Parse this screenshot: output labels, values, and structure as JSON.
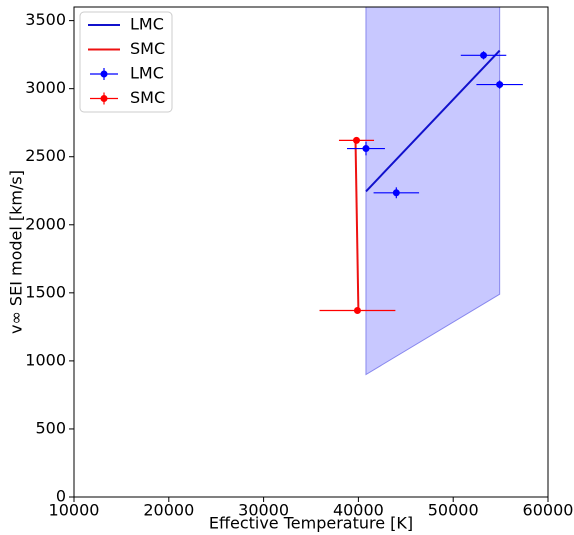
{
  "chart_data": {
    "type": "line",
    "xlabel": "Effective Temperature [K]",
    "ylabel": "v∞ SEI model [km/s]",
    "xlim": [
      10000,
      60000
    ],
    "ylim": [
      0,
      3600
    ],
    "xticks": [
      10000,
      20000,
      30000,
      40000,
      50000,
      60000
    ],
    "yticks": [
      0,
      500,
      1000,
      1500,
      2000,
      2500,
      3000,
      3500
    ],
    "legend": "upper left",
    "fill": {
      "x": [
        40800,
        54900
      ],
      "lower": [
        900,
        1490
      ],
      "upper": [
        3600,
        3600
      ],
      "color": "#c8c8ff",
      "edge": "#8888ee"
    },
    "series": [
      {
        "name": "LMC",
        "kind": "line",
        "color": "#1111cc",
        "x": [
          40800,
          54900
        ],
        "values": [
          2245,
          3280
        ]
      },
      {
        "name": "SMC",
        "kind": "line",
        "color": "#ee1111",
        "x": [
          39700,
          40000
        ],
        "values": [
          2600,
          1370
        ]
      },
      {
        "name": "LMC",
        "kind": "errorbar",
        "color": "#0000ff",
        "x": [
          40800,
          44000,
          53200,
          54900
        ],
        "values": [
          2560,
          2235,
          3245,
          3030
        ],
        "xerr": [
          2000,
          2400,
          2400,
          2450
        ],
        "yerr": [
          50,
          40,
          30,
          30
        ]
      },
      {
        "name": "SMC",
        "kind": "errorbar",
        "color": "#ff0000",
        "x": [
          39800,
          39900
        ],
        "values": [
          2620,
          1370
        ],
        "xerr": [
          1850,
          4000
        ],
        "yerr": [
          20,
          20
        ]
      }
    ]
  }
}
